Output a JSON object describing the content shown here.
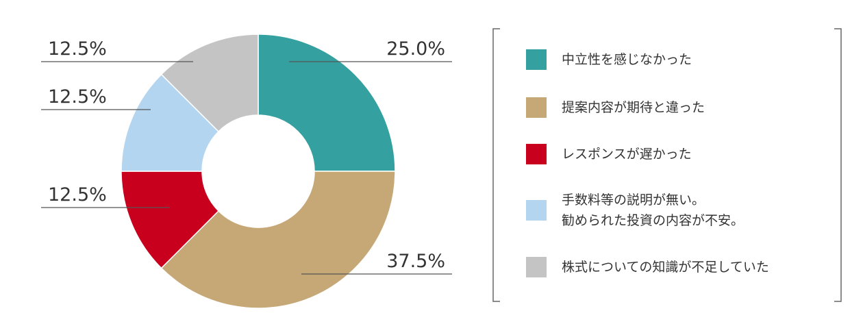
{
  "chart_data": {
    "type": "donut",
    "categories": [
      "中立性を感じなかった",
      "提案内容が期待と違った",
      "レスポンスが遅かった",
      "手数料等の説明が無い。\n勧められた投資の内容が不安。",
      "株式についての知識が不足していた"
    ],
    "values": [
      25.0,
      37.5,
      12.5,
      12.5,
      12.5
    ],
    "value_labels": [
      "25.0%",
      "37.5%",
      "12.5%",
      "12.5%",
      "12.5%"
    ],
    "colors": [
      "#35a0a0",
      "#c6a877",
      "#c8001e",
      "#b4d5ef",
      "#c4c4c4"
    ],
    "legend": "right"
  }
}
